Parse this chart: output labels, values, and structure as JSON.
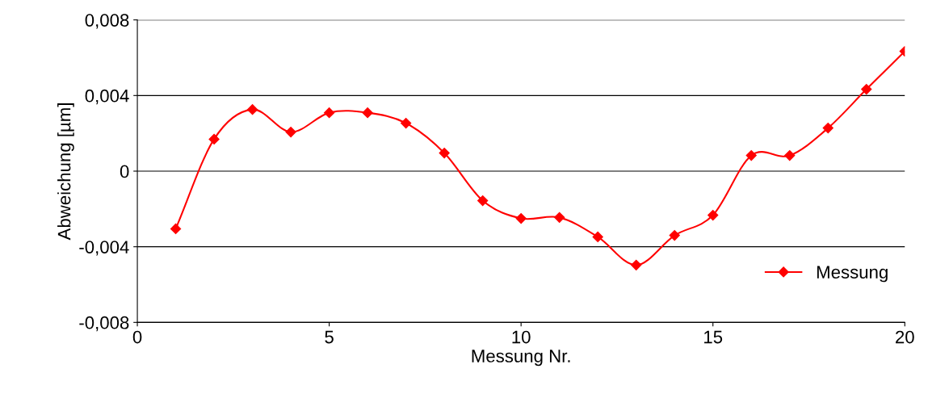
{
  "chart_data": {
    "type": "line",
    "xlabel": "Messung Nr.",
    "ylabel": "Abweichung [µm]",
    "x": [
      1,
      2,
      3,
      4,
      5,
      6,
      7,
      8,
      9,
      10,
      11,
      12,
      13,
      14,
      15,
      16,
      17,
      18,
      19,
      20
    ],
    "series": [
      {
        "name": "Messung",
        "color": "#ff0000",
        "values": [
          -0.00305,
          0.00169,
          0.00326,
          0.00207,
          0.00309,
          0.00309,
          0.00254,
          0.00096,
          -0.00156,
          -0.0025,
          -0.00245,
          -0.00348,
          -0.00497,
          -0.0034,
          -0.00233,
          0.00083,
          0.00083,
          0.00228,
          0.00433,
          0.00634
        ]
      }
    ],
    "xlim": [
      0,
      20
    ],
    "xticks": [
      0,
      5,
      10,
      15,
      20
    ],
    "ylim": [
      -0.008,
      0.008
    ],
    "yticks": [
      {
        "value": -0.008,
        "label": "-0,008"
      },
      {
        "value": -0.004,
        "label": "-0,004"
      },
      {
        "value": 0,
        "label": "0"
      },
      {
        "value": 0.004,
        "label": "0,004"
      },
      {
        "value": 0.008,
        "label": "0,008"
      }
    ],
    "grid": "y",
    "legend": "lower right",
    "marker": "diamond",
    "line_style": "solid"
  }
}
